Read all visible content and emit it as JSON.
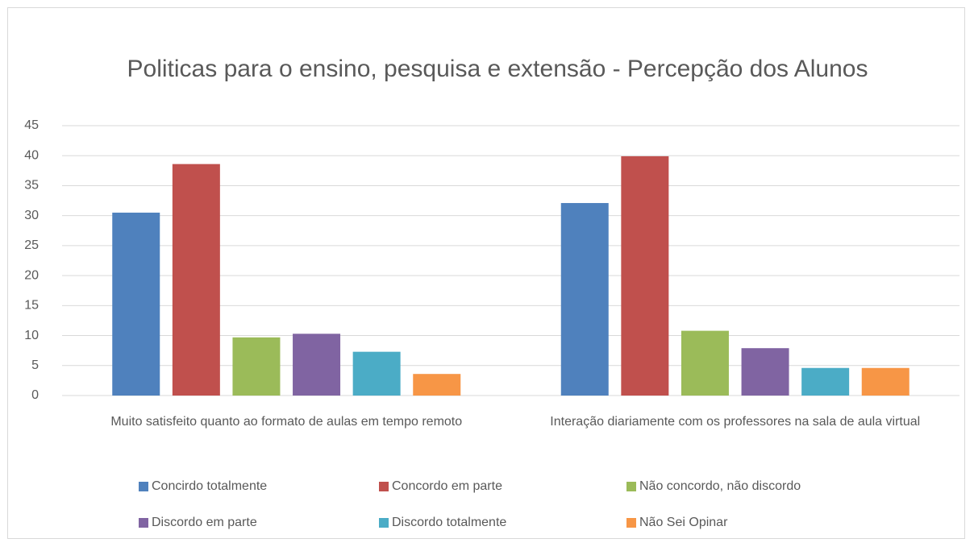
{
  "chart_data": {
    "type": "bar",
    "title": "Politicas para o ensino, pesquisa e extensão - Percepção dos Alunos",
    "categories": [
      "Muito satisfeito quanto ao formato de aulas em tempo remoto",
      "Interação diariamente com os professores na sala de aula virtual"
    ],
    "series": [
      {
        "name": "Concirdo totalmente",
        "color": "#4f81bd",
        "values": [
          30.5,
          32.1
        ]
      },
      {
        "name": "Concordo em parte",
        "color": "#c0504d",
        "values": [
          38.6,
          39.9
        ]
      },
      {
        "name": "Não concordo, não discordo",
        "color": "#9bbb59",
        "values": [
          9.7,
          10.8
        ]
      },
      {
        "name": "Discordo em parte",
        "color": "#8064a2",
        "values": [
          10.3,
          7.9
        ]
      },
      {
        "name": "Discordo totalmente",
        "color": "#4bacc6",
        "values": [
          7.3,
          4.6
        ]
      },
      {
        "name": "Não Sei Opinar",
        "color": "#f79646",
        "values": [
          3.6,
          4.6
        ]
      }
    ],
    "ylim": [
      0,
      45
    ],
    "yticks": [
      0,
      5,
      10,
      15,
      20,
      25,
      30,
      35,
      40,
      45
    ],
    "grid": true,
    "legend": "bottom"
  }
}
